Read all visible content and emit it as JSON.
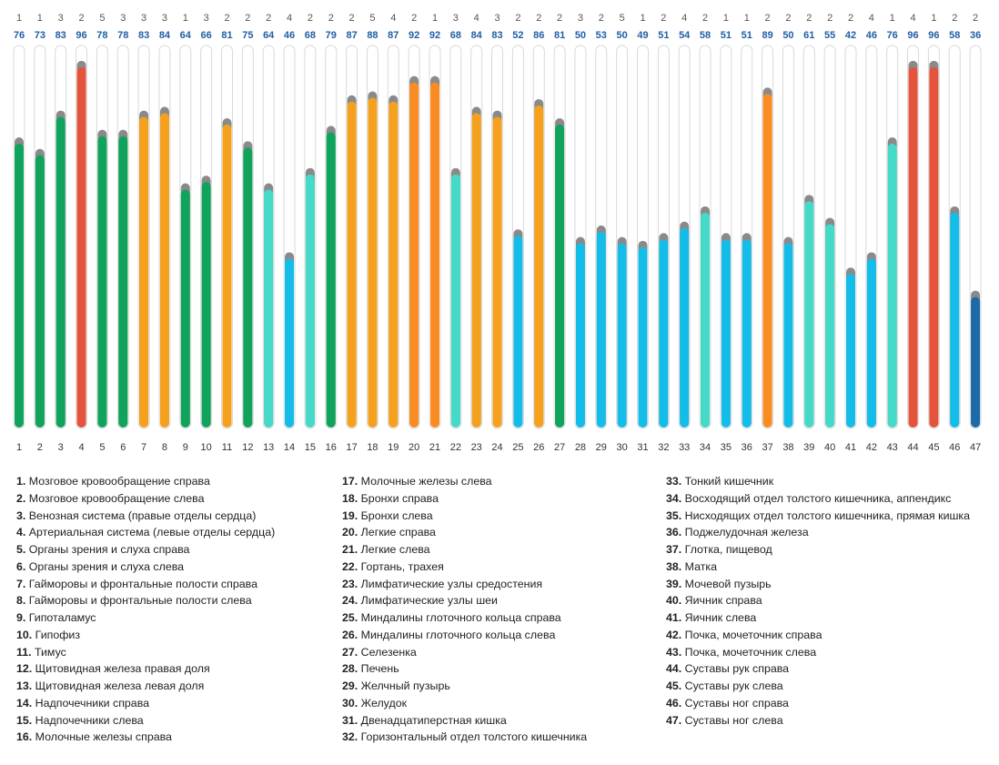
{
  "chart_data": {
    "type": "bar",
    "categories": [
      "1",
      "2",
      "3",
      "4",
      "5",
      "6",
      "7",
      "8",
      "9",
      "10",
      "11",
      "12",
      "13",
      "14",
      "15",
      "16",
      "17",
      "18",
      "19",
      "20",
      "21",
      "22",
      "23",
      "24",
      "25",
      "26",
      "27",
      "28",
      "29",
      "30",
      "31",
      "32",
      "33",
      "34",
      "35",
      "36",
      "37",
      "38",
      "39",
      "40",
      "41",
      "42",
      "43",
      "44",
      "45",
      "46",
      "47"
    ],
    "values": [
      76,
      73,
      83,
      96,
      78,
      78,
      83,
      84,
      64,
      66,
      81,
      75,
      64,
      46,
      68,
      79,
      87,
      88,
      87,
      92,
      92,
      68,
      84,
      83,
      52,
      86,
      81,
      50,
      53,
      50,
      49,
      51,
      54,
      58,
      51,
      51,
      89,
      50,
      61,
      55,
      42,
      46,
      76,
      96,
      96,
      58,
      36
    ],
    "top_counts": [
      1,
      1,
      3,
      2,
      5,
      3,
      3,
      3,
      1,
      3,
      2,
      2,
      2,
      4,
      2,
      2,
      2,
      5,
      4,
      2,
      1,
      3,
      4,
      3,
      2,
      2,
      2,
      3,
      2,
      5,
      1,
      2,
      4,
      2,
      1,
      1,
      2,
      2,
      2,
      2,
      2,
      4,
      1,
      4,
      1,
      2,
      2
    ],
    "bar_colors": [
      "#0fa35b",
      "#0fa35b",
      "#0fa35b",
      "#e4533b",
      "#0fa35b",
      "#0fa35b",
      "#f5a11e",
      "#f5a11e",
      "#0fa35b",
      "#0fa35b",
      "#f5a11e",
      "#0fa35b",
      "#45d9c8",
      "#13bde8",
      "#45d9c8",
      "#0fa35b",
      "#f5a11e",
      "#f5a11e",
      "#f5a11e",
      "#f98c22",
      "#f98c22",
      "#45d9c8",
      "#f5a11e",
      "#f5a11e",
      "#13bde8",
      "#f5a11e",
      "#0fa35b",
      "#13bde8",
      "#13bde8",
      "#13bde8",
      "#13bde8",
      "#13bde8",
      "#13bde8",
      "#45d9c8",
      "#13bde8",
      "#13bde8",
      "#f98c22",
      "#13bde8",
      "#45d9c8",
      "#45d9c8",
      "#13bde8",
      "#13bde8",
      "#45d9c8",
      "#e4533b",
      "#e4533b",
      "#13bde8",
      "#1c6aa8"
    ],
    "ylim": [
      0,
      100
    ]
  },
  "colors": {
    "track_border": "#d9d9d9",
    "cap": "#8a8a8a",
    "value_text": "#1f5fa6"
  },
  "legend": [
    {
      "num": "1.",
      "text": "Мозговое кровообращение справа"
    },
    {
      "num": "2.",
      "text": "Мозговое кровообращение слева"
    },
    {
      "num": "3.",
      "text": "Венозная система (правые отделы сердца)"
    },
    {
      "num": "4.",
      "text": "Артериальная система (левые отделы сердца)"
    },
    {
      "num": "5.",
      "text": "Органы зрения и слуха справа"
    },
    {
      "num": "6.",
      "text": "Органы зрения и слуха слева"
    },
    {
      "num": "7.",
      "text": "Гайморовы и фронтальные полости справа"
    },
    {
      "num": "8.",
      "text": "Гайморовы и фронтальные полости слева"
    },
    {
      "num": "9.",
      "text": "Гипоталамус"
    },
    {
      "num": "10.",
      "text": "Гипофиз"
    },
    {
      "num": "11.",
      "text": "Тимус"
    },
    {
      "num": "12.",
      "text": "Щитовидная железа правая доля"
    },
    {
      "num": "13.",
      "text": "Щитовидная железа левая доля"
    },
    {
      "num": "14.",
      "text": "Надпочечники справа"
    },
    {
      "num": "15.",
      "text": "Надпочечники слева"
    },
    {
      "num": "16.",
      "text": "Молочные железы справа"
    },
    {
      "num": "17.",
      "text": "Молочные железы слева"
    },
    {
      "num": "18.",
      "text": "Бронхи справа"
    },
    {
      "num": "19.",
      "text": "Бронхи слева"
    },
    {
      "num": "20.",
      "text": "Легкие справа"
    },
    {
      "num": "21.",
      "text": "Легкие слева"
    },
    {
      "num": "22.",
      "text": "Гортань, трахея"
    },
    {
      "num": "23.",
      "text": "Лимфатические узлы средостения"
    },
    {
      "num": "24.",
      "text": "Лимфатические узлы шеи"
    },
    {
      "num": "25.",
      "text": "Миндалины глоточного кольца справа"
    },
    {
      "num": "26.",
      "text": "Миндалины глоточного кольца слева"
    },
    {
      "num": "27.",
      "text": "Селезенка"
    },
    {
      "num": "28.",
      "text": "Печень"
    },
    {
      "num": "29.",
      "text": "Желчный пузырь"
    },
    {
      "num": "30.",
      "text": "Желудок"
    },
    {
      "num": "31.",
      "text": "Двенадцатиперстная кишка"
    },
    {
      "num": "32.",
      "text": "Горизонтальный отдел толстого кишечника"
    },
    {
      "num": "33.",
      "text": "Тонкий кишечник"
    },
    {
      "num": "34.",
      "text": "Восходящий отдел толстого кишечника, аппендикс"
    },
    {
      "num": "35.",
      "text": "Нисходящих отдел толстого кишечника, прямая кишка"
    },
    {
      "num": "36.",
      "text": "Поджелудочная железа"
    },
    {
      "num": "37.",
      "text": "Глотка, пищевод"
    },
    {
      "num": "38.",
      "text": "Матка"
    },
    {
      "num": "39.",
      "text": "Мочевой пузырь"
    },
    {
      "num": "40.",
      "text": "Яичник справа"
    },
    {
      "num": "41.",
      "text": "Яичник слева"
    },
    {
      "num": "42.",
      "text": "Почка, мочеточник справа"
    },
    {
      "num": "43.",
      "text": "Почка, мочеточник слева"
    },
    {
      "num": "44.",
      "text": "Суставы рук справа"
    },
    {
      "num": "45.",
      "text": "Суставы рук слева"
    },
    {
      "num": "46.",
      "text": "Суставы ног справа"
    },
    {
      "num": "47.",
      "text": "Суставы ног слева"
    }
  ]
}
